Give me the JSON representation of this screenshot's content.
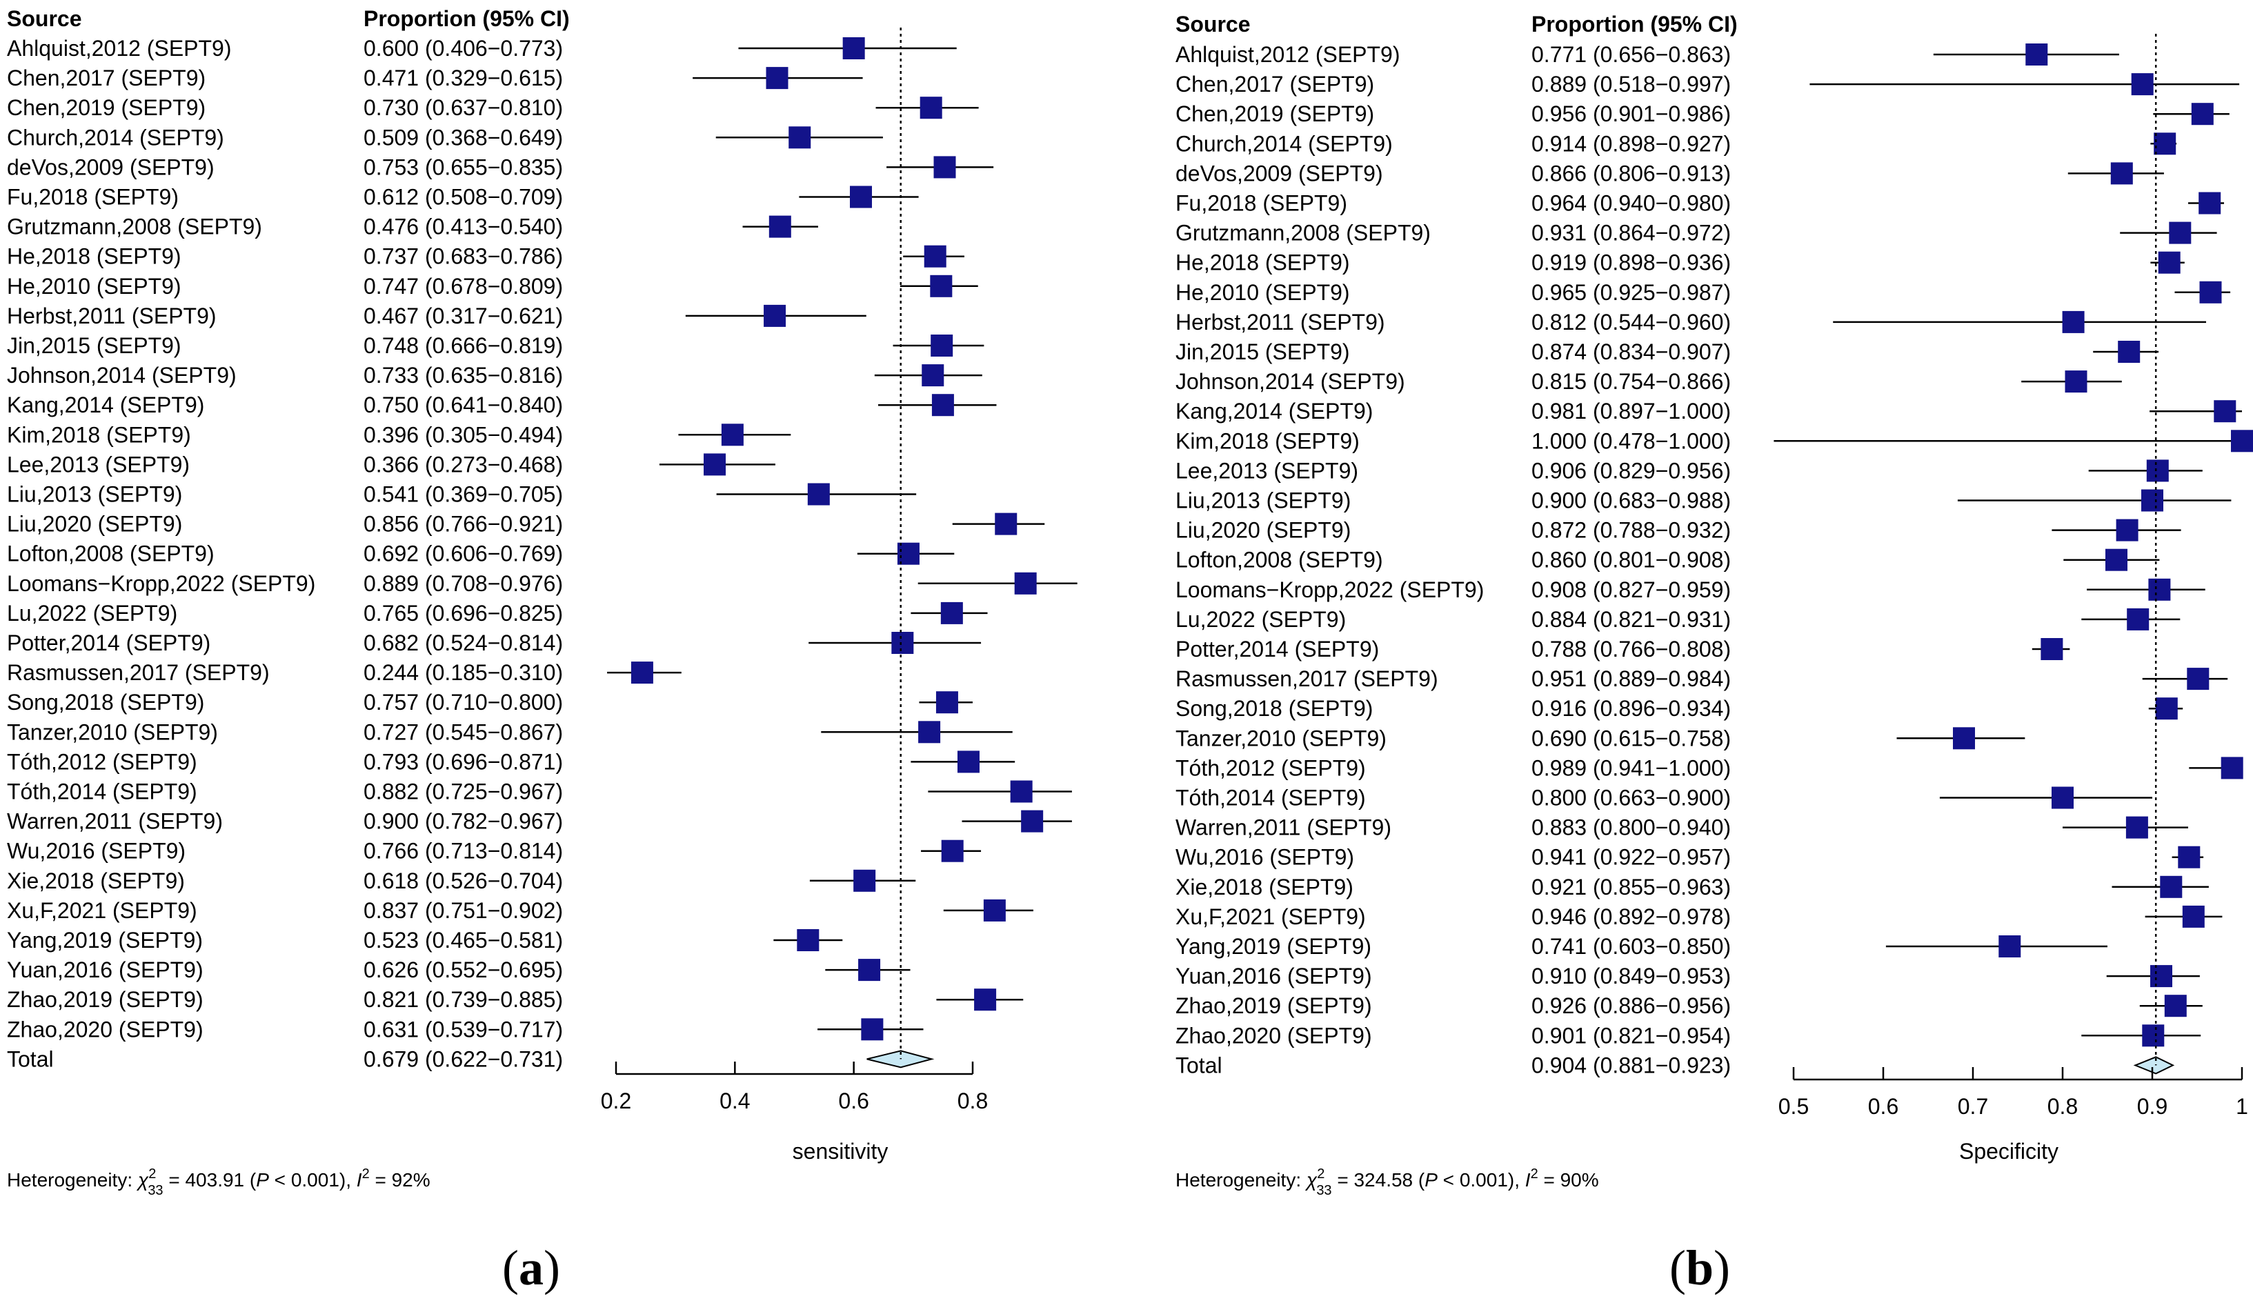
{
  "chart_data": [
    {
      "type": "forest",
      "panel_letter": "a",
      "col_source": "Source",
      "col_proportion": "Proportion (95% CI)",
      "xlabel": "sensitivity",
      "xlim": [
        0.2,
        0.8
      ],
      "xticks": [
        "0.2",
        "0.4",
        "0.6",
        "0.8"
      ],
      "pooled_estimate": 0.679,
      "studies": [
        {
          "name": "Ahlquist,2012 (SEPT9)",
          "ci_text": "0.600 (0.406−0.773)",
          "est": 0.6,
          "lo": 0.406,
          "hi": 0.773
        },
        {
          "name": "Chen,2017 (SEPT9)",
          "ci_text": "0.471 (0.329−0.615)",
          "est": 0.471,
          "lo": 0.329,
          "hi": 0.615
        },
        {
          "name": "Chen,2019 (SEPT9)",
          "ci_text": "0.730 (0.637−0.810)",
          "est": 0.73,
          "lo": 0.637,
          "hi": 0.81
        },
        {
          "name": "Church,2014 (SEPT9)",
          "ci_text": "0.509 (0.368−0.649)",
          "est": 0.509,
          "lo": 0.368,
          "hi": 0.649
        },
        {
          "name": "deVos,2009 (SEPT9)",
          "ci_text": "0.753 (0.655−0.835)",
          "est": 0.753,
          "lo": 0.655,
          "hi": 0.835
        },
        {
          "name": "Fu,2018 (SEPT9)",
          "ci_text": "0.612 (0.508−0.709)",
          "est": 0.612,
          "lo": 0.508,
          "hi": 0.709
        },
        {
          "name": "Grutzmann,2008 (SEPT9)",
          "ci_text": "0.476 (0.413−0.540)",
          "est": 0.476,
          "lo": 0.413,
          "hi": 0.54
        },
        {
          "name": "He,2018 (SEPT9)",
          "ci_text": "0.737 (0.683−0.786)",
          "est": 0.737,
          "lo": 0.683,
          "hi": 0.786
        },
        {
          "name": "He,2010 (SEPT9)",
          "ci_text": "0.747 (0.678−0.809)",
          "est": 0.747,
          "lo": 0.678,
          "hi": 0.809
        },
        {
          "name": "Herbst,2011 (SEPT9)",
          "ci_text": "0.467 (0.317−0.621)",
          "est": 0.467,
          "lo": 0.317,
          "hi": 0.621
        },
        {
          "name": "Jin,2015 (SEPT9)",
          "ci_text": "0.748 (0.666−0.819)",
          "est": 0.748,
          "lo": 0.666,
          "hi": 0.819
        },
        {
          "name": "Johnson,2014 (SEPT9)",
          "ci_text": "0.733 (0.635−0.816)",
          "est": 0.733,
          "lo": 0.635,
          "hi": 0.816
        },
        {
          "name": "Kang,2014 (SEPT9)",
          "ci_text": "0.750 (0.641−0.840)",
          "est": 0.75,
          "lo": 0.641,
          "hi": 0.84
        },
        {
          "name": "Kim,2018 (SEPT9)",
          "ci_text": "0.396 (0.305−0.494)",
          "est": 0.396,
          "lo": 0.305,
          "hi": 0.494
        },
        {
          "name": "Lee,2013 (SEPT9)",
          "ci_text": "0.366 (0.273−0.468)",
          "est": 0.366,
          "lo": 0.273,
          "hi": 0.468
        },
        {
          "name": "Liu,2013 (SEPT9)",
          "ci_text": "0.541 (0.369−0.705)",
          "est": 0.541,
          "lo": 0.369,
          "hi": 0.705
        },
        {
          "name": "Liu,2020 (SEPT9)",
          "ci_text": "0.856 (0.766−0.921)",
          "est": 0.856,
          "lo": 0.766,
          "hi": 0.921
        },
        {
          "name": "Lofton,2008 (SEPT9)",
          "ci_text": "0.692 (0.606−0.769)",
          "est": 0.692,
          "lo": 0.606,
          "hi": 0.769
        },
        {
          "name": "Loomans−Kropp,2022 (SEPT9)",
          "ci_text": "0.889 (0.708−0.976)",
          "est": 0.889,
          "lo": 0.708,
          "hi": 0.976
        },
        {
          "name": "Lu,2022 (SEPT9)",
          "ci_text": "0.765 (0.696−0.825)",
          "est": 0.765,
          "lo": 0.696,
          "hi": 0.825
        },
        {
          "name": "Potter,2014 (SEPT9)",
          "ci_text": "0.682 (0.524−0.814)",
          "est": 0.682,
          "lo": 0.524,
          "hi": 0.814
        },
        {
          "name": "Rasmussen,2017 (SEPT9)",
          "ci_text": "0.244 (0.185−0.310)",
          "est": 0.244,
          "lo": 0.185,
          "hi": 0.31
        },
        {
          "name": "Song,2018 (SEPT9)",
          "ci_text": "0.757 (0.710−0.800)",
          "est": 0.757,
          "lo": 0.71,
          "hi": 0.8
        },
        {
          "name": "Tanzer,2010 (SEPT9)",
          "ci_text": "0.727 (0.545−0.867)",
          "est": 0.727,
          "lo": 0.545,
          "hi": 0.867
        },
        {
          "name": "Tóth,2012 (SEPT9)",
          "ci_text": "0.793 (0.696−0.871)",
          "est": 0.793,
          "lo": 0.696,
          "hi": 0.871
        },
        {
          "name": "Tóth,2014 (SEPT9)",
          "ci_text": "0.882 (0.725−0.967)",
          "est": 0.882,
          "lo": 0.725,
          "hi": 0.967
        },
        {
          "name": "Warren,2011 (SEPT9)",
          "ci_text": "0.900 (0.782−0.967)",
          "est": 0.9,
          "lo": 0.782,
          "hi": 0.967
        },
        {
          "name": "Wu,2016 (SEPT9)",
          "ci_text": "0.766 (0.713−0.814)",
          "est": 0.766,
          "lo": 0.713,
          "hi": 0.814
        },
        {
          "name": "Xie,2018 (SEPT9)",
          "ci_text": "0.618 (0.526−0.704)",
          "est": 0.618,
          "lo": 0.526,
          "hi": 0.704
        },
        {
          "name": "Xu,F,2021 (SEPT9)",
          "ci_text": "0.837 (0.751−0.902)",
          "est": 0.837,
          "lo": 0.751,
          "hi": 0.902
        },
        {
          "name": "Yang,2019 (SEPT9)",
          "ci_text": "0.523 (0.465−0.581)",
          "est": 0.523,
          "lo": 0.465,
          "hi": 0.581
        },
        {
          "name": "Yuan,2016 (SEPT9)",
          "ci_text": "0.626 (0.552−0.695)",
          "est": 0.626,
          "lo": 0.552,
          "hi": 0.695
        },
        {
          "name": "Zhao,2019 (SEPT9)",
          "ci_text": "0.821 (0.739−0.885)",
          "est": 0.821,
          "lo": 0.739,
          "hi": 0.885
        },
        {
          "name": "Zhao,2020 (SEPT9)",
          "ci_text": "0.631 (0.539−0.717)",
          "est": 0.631,
          "lo": 0.539,
          "hi": 0.717
        }
      ],
      "total": {
        "name": "Total",
        "ci_text": "0.679 (0.622−0.731)",
        "est": 0.679,
        "lo": 0.622,
        "hi": 0.731
      },
      "heterogeneity": {
        "label": "Heterogeneity: ",
        "chi": "χ",
        "chi_sup": "2",
        "chi_sub": "33",
        "stat": " = 403.91 (",
        "p_letter": "P",
        "p_text": " < 0.001), ",
        "i_letter": "I",
        "i_sup": "2",
        "i_value": " = 92%"
      }
    },
    {
      "type": "forest",
      "panel_letter": "b",
      "col_source": "Source",
      "col_proportion": "Proportion (95% CI)",
      "xlabel": "Specificity",
      "xlim": [
        0.5,
        1.0
      ],
      "xticks": [
        "0.5",
        "0.6",
        "0.7",
        "0.8",
        "0.9",
        "1"
      ],
      "pooled_estimate": 0.904,
      "studies": [
        {
          "name": "Ahlquist,2012 (SEPT9)",
          "ci_text": "0.771 (0.656−0.863)",
          "est": 0.771,
          "lo": 0.656,
          "hi": 0.863
        },
        {
          "name": "Chen,2017 (SEPT9)",
          "ci_text": "0.889 (0.518−0.997)",
          "est": 0.889,
          "lo": 0.518,
          "hi": 0.997
        },
        {
          "name": "Chen,2019 (SEPT9)",
          "ci_text": "0.956 (0.901−0.986)",
          "est": 0.956,
          "lo": 0.901,
          "hi": 0.986
        },
        {
          "name": "Church,2014 (SEPT9)",
          "ci_text": "0.914 (0.898−0.927)",
          "est": 0.914,
          "lo": 0.898,
          "hi": 0.927
        },
        {
          "name": "deVos,2009 (SEPT9)",
          "ci_text": "0.866 (0.806−0.913)",
          "est": 0.866,
          "lo": 0.806,
          "hi": 0.913
        },
        {
          "name": "Fu,2018 (SEPT9)",
          "ci_text": "0.964 (0.940−0.980)",
          "est": 0.964,
          "lo": 0.94,
          "hi": 0.98
        },
        {
          "name": "Grutzmann,2008 (SEPT9)",
          "ci_text": "0.931 (0.864−0.972)",
          "est": 0.931,
          "lo": 0.864,
          "hi": 0.972
        },
        {
          "name": "He,2018 (SEPT9)",
          "ci_text": "0.919 (0.898−0.936)",
          "est": 0.919,
          "lo": 0.898,
          "hi": 0.936
        },
        {
          "name": "He,2010 (SEPT9)",
          "ci_text": "0.965 (0.925−0.987)",
          "est": 0.965,
          "lo": 0.925,
          "hi": 0.987
        },
        {
          "name": "Herbst,2011 (SEPT9)",
          "ci_text": "0.812 (0.544−0.960)",
          "est": 0.812,
          "lo": 0.544,
          "hi": 0.96
        },
        {
          "name": "Jin,2015 (SEPT9)",
          "ci_text": "0.874 (0.834−0.907)",
          "est": 0.874,
          "lo": 0.834,
          "hi": 0.907
        },
        {
          "name": "Johnson,2014 (SEPT9)",
          "ci_text": "0.815 (0.754−0.866)",
          "est": 0.815,
          "lo": 0.754,
          "hi": 0.866
        },
        {
          "name": "Kang,2014 (SEPT9)",
          "ci_text": "0.981 (0.897−1.000)",
          "est": 0.981,
          "lo": 0.897,
          "hi": 1.0
        },
        {
          "name": "Kim,2018 (SEPT9)",
          "ci_text": "1.000 (0.478−1.000)",
          "est": 1.0,
          "lo": 0.478,
          "hi": 1.0
        },
        {
          "name": "Lee,2013 (SEPT9)",
          "ci_text": "0.906 (0.829−0.956)",
          "est": 0.906,
          "lo": 0.829,
          "hi": 0.956
        },
        {
          "name": "Liu,2013 (SEPT9)",
          "ci_text": "0.900 (0.683−0.988)",
          "est": 0.9,
          "lo": 0.683,
          "hi": 0.988
        },
        {
          "name": "Liu,2020 (SEPT9)",
          "ci_text": "0.872 (0.788−0.932)",
          "est": 0.872,
          "lo": 0.788,
          "hi": 0.932
        },
        {
          "name": "Lofton,2008 (SEPT9)",
          "ci_text": "0.860 (0.801−0.908)",
          "est": 0.86,
          "lo": 0.801,
          "hi": 0.908
        },
        {
          "name": "Loomans−Kropp,2022 (SEPT9)",
          "ci_text": "0.908 (0.827−0.959)",
          "est": 0.908,
          "lo": 0.827,
          "hi": 0.959
        },
        {
          "name": "Lu,2022 (SEPT9)",
          "ci_text": "0.884 (0.821−0.931)",
          "est": 0.884,
          "lo": 0.821,
          "hi": 0.931
        },
        {
          "name": "Potter,2014 (SEPT9)",
          "ci_text": "0.788 (0.766−0.808)",
          "est": 0.788,
          "lo": 0.766,
          "hi": 0.808
        },
        {
          "name": "Rasmussen,2017 (SEPT9)",
          "ci_text": "0.951 (0.889−0.984)",
          "est": 0.951,
          "lo": 0.889,
          "hi": 0.984
        },
        {
          "name": "Song,2018 (SEPT9)",
          "ci_text": "0.916 (0.896−0.934)",
          "est": 0.916,
          "lo": 0.896,
          "hi": 0.934
        },
        {
          "name": "Tanzer,2010 (SEPT9)",
          "ci_text": "0.690 (0.615−0.758)",
          "est": 0.69,
          "lo": 0.615,
          "hi": 0.758
        },
        {
          "name": "Tóth,2012 (SEPT9)",
          "ci_text": "0.989 (0.941−1.000)",
          "est": 0.989,
          "lo": 0.941,
          "hi": 1.0
        },
        {
          "name": "Tóth,2014 (SEPT9)",
          "ci_text": "0.800 (0.663−0.900)",
          "est": 0.8,
          "lo": 0.663,
          "hi": 0.9
        },
        {
          "name": "Warren,2011 (SEPT9)",
          "ci_text": "0.883 (0.800−0.940)",
          "est": 0.883,
          "lo": 0.8,
          "hi": 0.94
        },
        {
          "name": "Wu,2016 (SEPT9)",
          "ci_text": "0.941 (0.922−0.957)",
          "est": 0.941,
          "lo": 0.922,
          "hi": 0.957
        },
        {
          "name": "Xie,2018 (SEPT9)",
          "ci_text": "0.921 (0.855−0.963)",
          "est": 0.921,
          "lo": 0.855,
          "hi": 0.963
        },
        {
          "name": "Xu,F,2021 (SEPT9)",
          "ci_text": "0.946 (0.892−0.978)",
          "est": 0.946,
          "lo": 0.892,
          "hi": 0.978
        },
        {
          "name": "Yang,2019 (SEPT9)",
          "ci_text": "0.741 (0.603−0.850)",
          "est": 0.741,
          "lo": 0.603,
          "hi": 0.85
        },
        {
          "name": "Yuan,2016 (SEPT9)",
          "ci_text": "0.910 (0.849−0.953)",
          "est": 0.91,
          "lo": 0.849,
          "hi": 0.953
        },
        {
          "name": "Zhao,2019 (SEPT9)",
          "ci_text": "0.926 (0.886−0.956)",
          "est": 0.926,
          "lo": 0.886,
          "hi": 0.956
        },
        {
          "name": "Zhao,2020 (SEPT9)",
          "ci_text": "0.901 (0.821−0.954)",
          "est": 0.901,
          "lo": 0.821,
          "hi": 0.954
        }
      ],
      "total": {
        "name": "Total",
        "ci_text": "0.904 (0.881−0.923)",
        "est": 0.904,
        "lo": 0.881,
        "hi": 0.923
      },
      "heterogeneity": {
        "label": "Heterogeneity: ",
        "chi": "χ",
        "chi_sup": "2",
        "chi_sub": "33",
        "stat": " = 324.58 (",
        "p_letter": "P",
        "p_text": " < 0.001), ",
        "i_letter": "I",
        "i_sup": "2",
        "i_value": " = 90%"
      }
    }
  ],
  "colors": {
    "marker": "#13138a",
    "diamond_fill": "#c8e8f4",
    "line": "#000000"
  }
}
